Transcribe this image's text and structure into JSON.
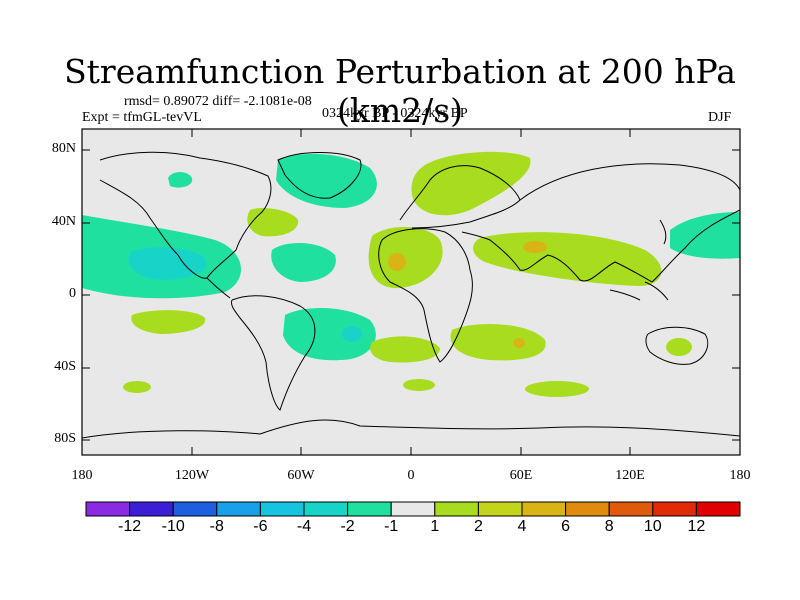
{
  "header": {
    "title": "Streamfunction Perturbation at 200 hPa (km2/s)",
    "stats": "rmsd= 0.89072 diff= -2.1081e-08",
    "experiment": "Expt = tfmGL-tevVL",
    "period": "0324kyr BP - 0324kyr BP",
    "season": "DJF"
  },
  "map": {
    "lat_ticks": [
      "80N",
      "40N",
      "0",
      "40S",
      "80S"
    ],
    "lon_ticks": [
      "180",
      "120W",
      "60W",
      "0",
      "60E",
      "120E",
      "180"
    ]
  },
  "colorbar": {
    "labels": [
      "-12",
      "-10",
      "-8",
      "-6",
      "-4",
      "-2",
      "-1",
      "1",
      "2",
      "4",
      "6",
      "8",
      "10",
      "12"
    ],
    "colors": [
      "#8a2be2",
      "#3a1fd6",
      "#1e5fe0",
      "#1aa0e8",
      "#14c4e0",
      "#18d4c8",
      "#20e0a0",
      "#e8e8e8",
      "#a8dc1e",
      "#c4d41a",
      "#d8b414",
      "#e08a10",
      "#e05a0c",
      "#e02a08",
      "#e00000"
    ]
  },
  "colors": {
    "neutral": "#e8e8e8",
    "neg1": "#20e0a0",
    "neg2": "#18d4c8",
    "pos1": "#a8dc1e",
    "pos2": "#d8b414"
  }
}
